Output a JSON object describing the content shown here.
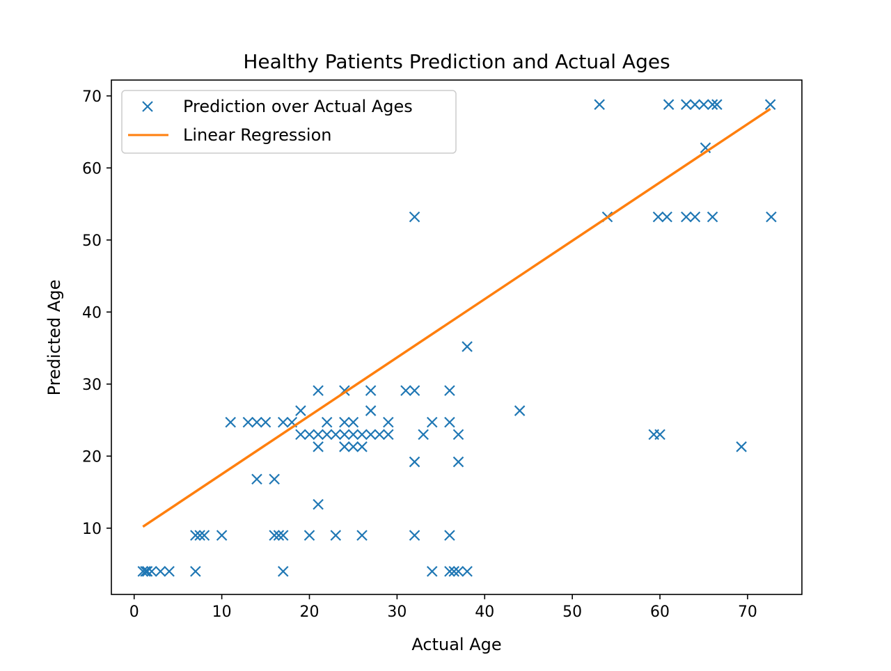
{
  "colors": {
    "points": "#1f77b4",
    "regression": "#ff7f0e",
    "axes": "#000000",
    "background": "#ffffff"
  },
  "chart_data": {
    "type": "scatter",
    "title": "Healthy Patients Prediction and Actual Ages",
    "xlabel": "Actual Age",
    "ylabel": "Predicted Age",
    "xlim": [
      -2.6,
      76.2
    ],
    "ylim": [
      0.8,
      72.2
    ],
    "x_ticks": [
      0,
      10,
      20,
      30,
      40,
      50,
      60,
      70
    ],
    "y_ticks": [
      10,
      20,
      30,
      40,
      50,
      60,
      70
    ],
    "grid": false,
    "legend_position": "top-left",
    "series": [
      {
        "name": "Prediction over Actual Ages",
        "marker": "x",
        "points": [
          [
            1,
            4
          ],
          [
            1.3,
            4
          ],
          [
            1.5,
            4
          ],
          [
            2,
            4
          ],
          [
            3,
            4
          ],
          [
            4,
            4
          ],
          [
            7,
            4
          ],
          [
            17,
            4
          ],
          [
            34,
            4
          ],
          [
            36,
            4
          ],
          [
            36.5,
            4
          ],
          [
            37,
            4
          ],
          [
            38,
            4
          ],
          [
            7,
            9
          ],
          [
            7.5,
            9
          ],
          [
            8,
            9
          ],
          [
            10,
            9
          ],
          [
            16,
            9
          ],
          [
            16.5,
            9
          ],
          [
            17,
            9
          ],
          [
            20,
            9
          ],
          [
            23,
            9
          ],
          [
            26,
            9
          ],
          [
            32,
            9
          ],
          [
            36,
            9
          ],
          [
            21,
            13.3
          ],
          [
            14,
            16.8
          ],
          [
            16,
            16.8
          ],
          [
            32,
            19.2
          ],
          [
            37,
            19.2
          ],
          [
            21,
            21.3
          ],
          [
            24,
            21.3
          ],
          [
            25,
            21.3
          ],
          [
            26,
            21.3
          ],
          [
            69.3,
            21.3
          ],
          [
            19,
            23
          ],
          [
            20,
            23
          ],
          [
            21,
            23
          ],
          [
            22,
            23
          ],
          [
            23,
            23
          ],
          [
            24,
            23
          ],
          [
            25,
            23
          ],
          [
            26,
            23
          ],
          [
            27,
            23
          ],
          [
            28,
            23
          ],
          [
            29,
            23
          ],
          [
            33,
            23
          ],
          [
            37,
            23
          ],
          [
            59.3,
            23
          ],
          [
            60,
            23
          ],
          [
            11,
            24.7
          ],
          [
            13,
            24.7
          ],
          [
            14,
            24.7
          ],
          [
            15,
            24.7
          ],
          [
            17,
            24.7
          ],
          [
            18,
            24.7
          ],
          [
            22,
            24.7
          ],
          [
            24,
            24.7
          ],
          [
            25,
            24.7
          ],
          [
            29,
            24.7
          ],
          [
            34,
            24.7
          ],
          [
            36,
            24.7
          ],
          [
            19,
            26.3
          ],
          [
            27,
            26.3
          ],
          [
            44,
            26.3
          ],
          [
            21,
            29.1
          ],
          [
            24,
            29.1
          ],
          [
            27,
            29.1
          ],
          [
            31,
            29.1
          ],
          [
            32,
            29.1
          ],
          [
            36,
            29.1
          ],
          [
            38,
            35.2
          ],
          [
            32,
            53.2
          ],
          [
            54,
            53.2
          ],
          [
            59.8,
            53.2
          ],
          [
            60.8,
            53.2
          ],
          [
            63,
            53.2
          ],
          [
            64,
            53.2
          ],
          [
            66,
            53.2
          ],
          [
            72.7,
            53.2
          ],
          [
            65.2,
            62.8
          ],
          [
            53.1,
            68.8
          ],
          [
            61,
            68.8
          ],
          [
            63,
            68.8
          ],
          [
            64,
            68.8
          ],
          [
            65,
            68.8
          ],
          [
            66,
            68.8
          ],
          [
            66.5,
            68.8
          ],
          [
            72.6,
            68.8
          ]
        ]
      },
      {
        "name": "Linear Regression",
        "marker": "line",
        "points": [
          [
            1,
            10.2
          ],
          [
            72.6,
            68.2
          ]
        ]
      }
    ]
  }
}
